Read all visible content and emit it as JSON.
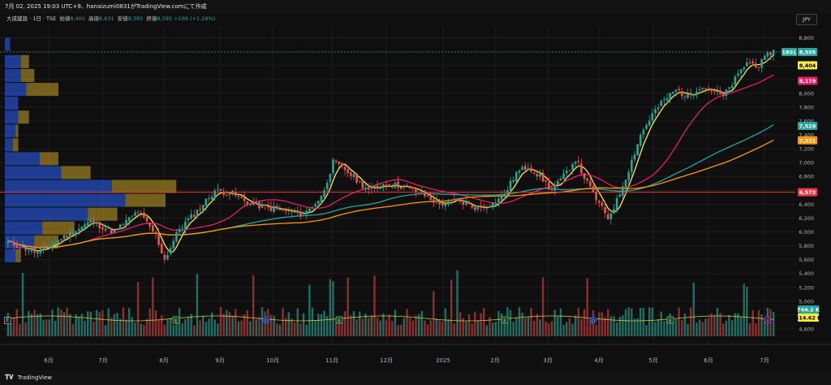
{
  "header": {
    "title": "7月 02, 2025 19:03 UTC+9、hanaizumi0831がTradingView.comにて作成",
    "symbol_line": "大成建設 · 1日 · TSE",
    "ohlc": [
      {
        "label": "始値",
        "value": "8,400"
      },
      {
        "label": "高値",
        "value": "8,631"
      },
      {
        "label": "安値",
        "value": "8,395"
      },
      {
        "label": "終値",
        "value": "8,595"
      }
    ],
    "change": "+109 (+1.28%)",
    "currency": "JPY"
  },
  "footer": {
    "brand": "TradingView"
  },
  "markers": {
    "earnings": "E",
    "dividend": "D",
    "flash": "⚡",
    "left_e": "E"
  },
  "chart_data": {
    "type": "candlestick",
    "symbol": "1801",
    "ylim": [
      4600,
      8900
    ],
    "y_ticks": [
      4600,
      4800,
      5000,
      5200,
      5400,
      5600,
      5800,
      6000,
      6200,
      6400,
      6600,
      6800,
      7000,
      7200,
      7400,
      7600,
      7800,
      8000,
      8200,
      8400,
      8600,
      8800
    ],
    "y_tick_labels": [
      "4,600",
      "4,800",
      "5,000",
      "5,200",
      "5,400",
      "5,600",
      "5,800",
      "6,000",
      "6,200",
      "6,400",
      "6,600",
      "6,800",
      "7,000",
      "7,200",
      "7,400",
      "7,600",
      "7,800",
      "8,000",
      "8,200",
      "8,400",
      "8,600",
      "8,800"
    ],
    "x_labels": [
      "6月",
      "7月",
      "8月",
      "9月",
      "10月",
      "11月",
      "12月",
      "2025",
      "2月",
      "3月",
      "4月",
      "5月",
      "6月",
      "7月"
    ],
    "price_path": [
      {
        "i": 0,
        "c": 5850
      },
      {
        "i": 10,
        "c": 5700
      },
      {
        "i": 18,
        "c": 5900
      },
      {
        "i": 28,
        "c": 6150
      },
      {
        "i": 36,
        "c": 6000
      },
      {
        "i": 44,
        "c": 6300
      },
      {
        "i": 50,
        "c": 5950
      },
      {
        "i": 53,
        "c": 5600
      },
      {
        "i": 58,
        "c": 6050
      },
      {
        "i": 64,
        "c": 6300
      },
      {
        "i": 70,
        "c": 6600
      },
      {
        "i": 76,
        "c": 6550
      },
      {
        "i": 82,
        "c": 6400
      },
      {
        "i": 88,
        "c": 6350
      },
      {
        "i": 94,
        "c": 6300
      },
      {
        "i": 100,
        "c": 6250
      },
      {
        "i": 106,
        "c": 6500
      },
      {
        "i": 110,
        "c": 7000
      },
      {
        "i": 114,
        "c": 6900
      },
      {
        "i": 118,
        "c": 6750
      },
      {
        "i": 122,
        "c": 6600
      },
      {
        "i": 128,
        "c": 6700
      },
      {
        "i": 134,
        "c": 6650
      },
      {
        "i": 140,
        "c": 6550
      },
      {
        "i": 146,
        "c": 6400
      },
      {
        "i": 152,
        "c": 6450
      },
      {
        "i": 158,
        "c": 6350
      },
      {
        "i": 164,
        "c": 6400
      },
      {
        "i": 168,
        "c": 6550
      },
      {
        "i": 172,
        "c": 6850
      },
      {
        "i": 176,
        "c": 6950
      },
      {
        "i": 180,
        "c": 6800
      },
      {
        "i": 184,
        "c": 6600
      },
      {
        "i": 188,
        "c": 6800
      },
      {
        "i": 192,
        "c": 7050
      },
      {
        "i": 196,
        "c": 6700
      },
      {
        "i": 200,
        "c": 6400
      },
      {
        "i": 203,
        "c": 6200
      },
      {
        "i": 206,
        "c": 6450
      },
      {
        "i": 210,
        "c": 6900
      },
      {
        "i": 214,
        "c": 7400
      },
      {
        "i": 218,
        "c": 7700
      },
      {
        "i": 222,
        "c": 7900
      },
      {
        "i": 226,
        "c": 8050
      },
      {
        "i": 230,
        "c": 7950
      },
      {
        "i": 234,
        "c": 8100
      },
      {
        "i": 238,
        "c": 8050
      },
      {
        "i": 242,
        "c": 7950
      },
      {
        "i": 246,
        "c": 8200
      },
      {
        "i": 250,
        "c": 8450
      },
      {
        "i": 254,
        "c": 8400
      },
      {
        "i": 258,
        "c": 8595
      }
    ],
    "bars": 260,
    "hline": {
      "value": 6573,
      "label": "6,573",
      "color": "#f23645"
    },
    "price_labels": [
      {
        "text": "8,595",
        "value": 8595,
        "color": "#26a69a"
      },
      {
        "text": "8,404",
        "value": 8404,
        "color": "#ffeb3b"
      },
      {
        "text": "8,179",
        "value": 8179,
        "color": "#e91e63"
      },
      {
        "text": "7,529",
        "value": 7529,
        "color": "#26a69a"
      },
      {
        "text": "7,321",
        "value": 7321,
        "color": "#ff9800"
      },
      {
        "text": "6,573",
        "value": 6573,
        "color": "#f23645"
      }
    ],
    "volume_labels": [
      {
        "text": "744.2 K",
        "color": "#26a69a"
      },
      {
        "text": "614.62 K",
        "color": "#ffeb3b"
      }
    ],
    "moving_averages": [
      {
        "color": "#ffeb3b",
        "period": 5
      },
      {
        "color": "#e91e63",
        "period": 25
      },
      {
        "color": "#26a69a",
        "period": 75
      },
      {
        "color": "#ff9800",
        "period": 100
      }
    ],
    "volume_profile": [
      {
        "price": 8700,
        "up": 0.04,
        "down": 0.0
      },
      {
        "price": 8450,
        "up": 0.12,
        "down": 0.06
      },
      {
        "price": 8250,
        "up": 0.12,
        "down": 0.1
      },
      {
        "price": 8050,
        "up": 0.16,
        "down": 0.24
      },
      {
        "price": 7850,
        "up": 0.1,
        "down": 0.0
      },
      {
        "price": 7650,
        "up": 0.1,
        "down": 0.08
      },
      {
        "price": 7450,
        "up": 0.08,
        "down": 0.02
      },
      {
        "price": 7250,
        "up": 0.06,
        "down": 0.04
      },
      {
        "price": 7050,
        "up": 0.26,
        "down": 0.14
      },
      {
        "price": 6850,
        "up": 0.42,
        "down": 0.22
      },
      {
        "price": 6650,
        "up": 0.8,
        "down": 0.48
      },
      {
        "price": 6450,
        "up": 0.9,
        "down": 0.3
      },
      {
        "price": 6250,
        "up": 0.62,
        "down": 0.22
      },
      {
        "price": 6050,
        "up": 0.28,
        "down": 0.24
      },
      {
        "price": 5850,
        "up": 0.22,
        "down": 0.18
      },
      {
        "price": 5650,
        "up": 0.08,
        "down": 0.04
      }
    ]
  }
}
